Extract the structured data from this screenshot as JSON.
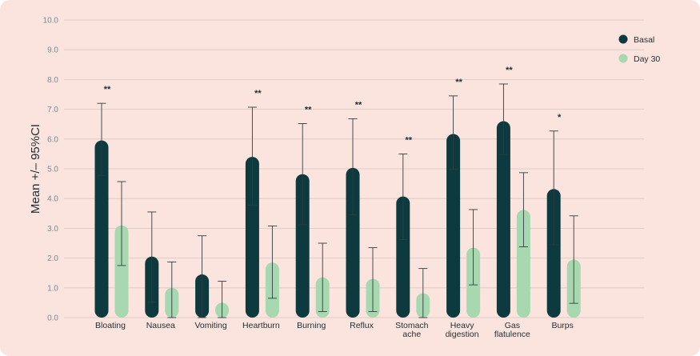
{
  "chart_data": {
    "type": "bar",
    "ylabel": "Mean +/– 95%CI",
    "ylim": [
      0,
      10
    ],
    "yticks": [
      "0.0",
      "1.0",
      "2.0",
      "3.0",
      "4.0",
      "5.0",
      "6.0",
      "7.0",
      "8.0",
      "9.0",
      "10.0"
    ],
    "grid": true,
    "legend_position": "top-right",
    "categories": [
      [
        "Bloating"
      ],
      [
        "Nausea"
      ],
      [
        "Vomiting"
      ],
      [
        "Heartburn"
      ],
      [
        "Burning"
      ],
      [
        "Reflux"
      ],
      [
        "Stomach",
        "ache"
      ],
      [
        "Heavy",
        "digestion"
      ],
      [
        "Gas",
        "flatulence"
      ],
      [
        "Burps"
      ]
    ],
    "series": [
      {
        "name": "Basal",
        "color": "#0d3a3f",
        "values": [
          5.95,
          2.05,
          1.45,
          5.4,
          4.82,
          5.03,
          4.07,
          6.17,
          6.6,
          4.32
        ],
        "ci_low": [
          4.78,
          0.52,
          0.0,
          3.78,
          3.12,
          3.45,
          2.62,
          4.98,
          5.48,
          2.45
        ],
        "ci_high": [
          7.2,
          3.55,
          2.75,
          7.07,
          6.52,
          6.68,
          5.5,
          7.45,
          7.85,
          6.27
        ]
      },
      {
        "name": "Day 30",
        "color": "#a8d8b0",
        "values": [
          3.1,
          1.0,
          0.5,
          1.85,
          1.35,
          1.3,
          0.82,
          2.35,
          3.62,
          1.95
        ],
        "ci_low": [
          1.75,
          0.0,
          0.0,
          0.65,
          0.2,
          0.2,
          0.0,
          1.1,
          2.38,
          0.48
        ],
        "ci_high": [
          4.57,
          1.87,
          1.22,
          3.08,
          2.5,
          2.35,
          1.65,
          3.63,
          4.87,
          3.42
        ]
      }
    ],
    "significance": [
      "**",
      "",
      "",
      "**",
      "**",
      "**",
      "**",
      "**",
      "**",
      "*"
    ]
  }
}
